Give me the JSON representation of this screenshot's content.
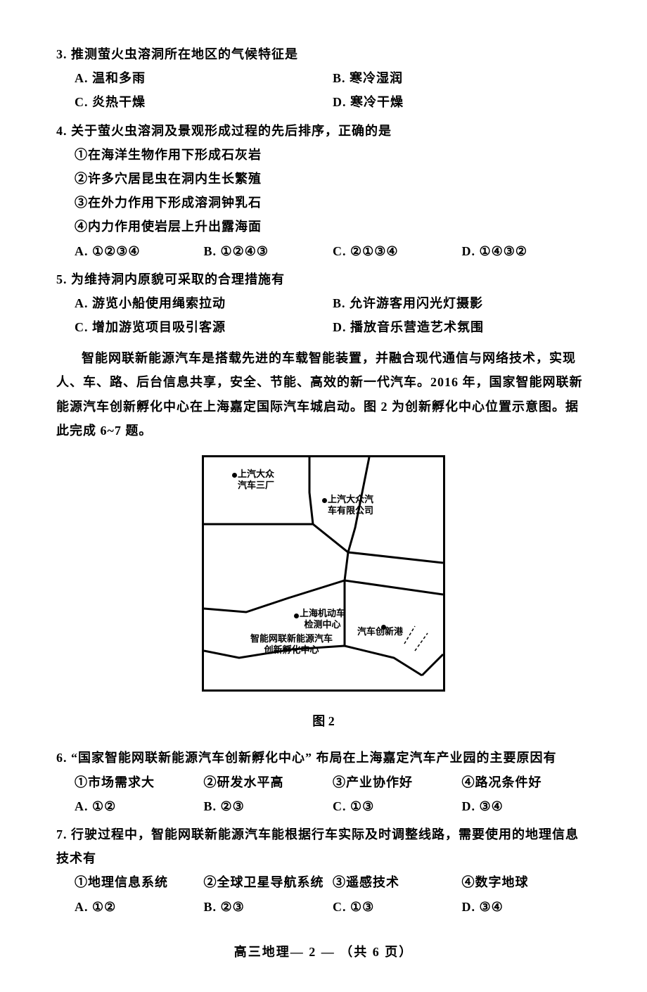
{
  "q3": {
    "stem": "3. 推测萤火虫溶洞所在地区的气候特征是",
    "opts": [
      "A. 温和多雨",
      "B. 寒冷湿润",
      "C. 炎热干燥",
      "D. 寒冷干燥"
    ]
  },
  "q4": {
    "stem": "4. 关于萤火虫溶洞及景观形成过程的先后排序，正确的是",
    "items": [
      "①在海洋生物作用下形成石灰岩",
      "②许多穴居昆虫在洞内生长繁殖",
      "③在外力作用下形成溶洞钟乳石",
      "④内力作用使岩层上升出露海面"
    ],
    "opts": [
      "A. ①②③④",
      "B. ①②④③",
      "C. ②①③④",
      "D. ①④③②"
    ]
  },
  "q5": {
    "stem": "5. 为维持洞内原貌可采取的合理措施有",
    "opts": [
      "A. 游览小船使用绳索拉动",
      "B. 允许游客用闪光灯摄影",
      "C. 增加游览项目吸引客源",
      "D. 播放音乐营造艺术氛围"
    ]
  },
  "passage": "智能网联新能源汽车是搭载先进的车载智能装置，并融合现代通信与网络技术，实现人、车、路、后台信息共享，安全、节能、高效的新一代汽车。2016 年，国家智能网联新能源汽车创新孵化中心在上海嘉定国际汽车城启动。图 2 为创新孵化中心位置示意图。据此完成 6~7 题。",
  "figure": {
    "caption": "图 2",
    "labels": {
      "factory3": "上汽大众\n汽车三厂",
      "company": "上汽大众汽\n车有限公司",
      "test": "上海机动车\n检测中心",
      "incubator": "智能网联新能源汽车\n创新孵化中心",
      "port": "汽车创新港"
    }
  },
  "q6": {
    "stem": "6. “国家智能网联新能源汽车创新孵化中心” 布局在上海嘉定汽车产业园的主要原因有",
    "items": [
      "①市场需求大",
      "②研发水平高",
      "③产业协作好",
      "④路况条件好"
    ],
    "opts": [
      "A. ①②",
      "B. ②③",
      "C. ①③",
      "D. ③④"
    ]
  },
  "q7": {
    "stem": "7. 行驶过程中，智能网联新能源汽车能根据行车实际及时调整线路，需要使用的地理信息技术有",
    "items": [
      "①地理信息系统",
      "②全球卫星导航系统",
      "③遥感技术",
      "④数字地球"
    ],
    "opts": [
      "A. ①②",
      "B. ②③",
      "C. ①③",
      "D. ③④"
    ]
  },
  "footer": "高三地理— 2 — （共 6 页）"
}
